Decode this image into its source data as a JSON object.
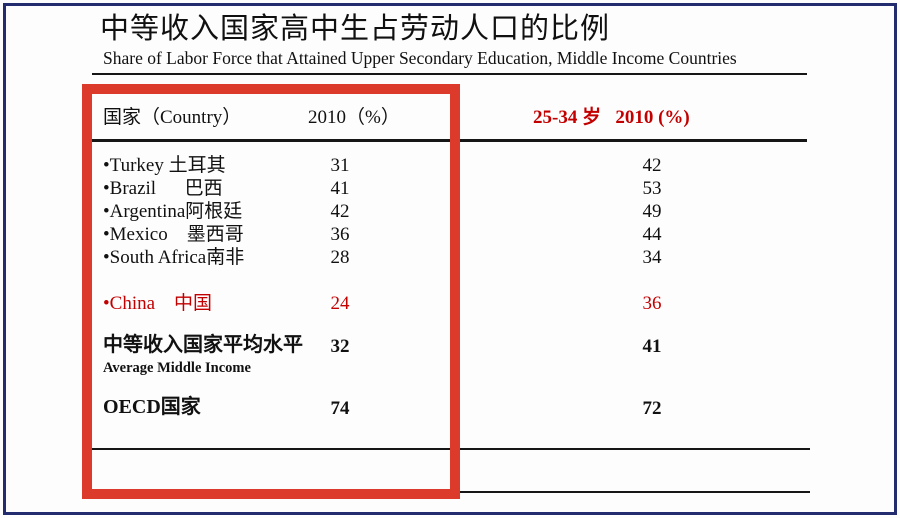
{
  "slide": {
    "title": "中等收入国家高中生占劳动人口的比例",
    "subtitle": "Share of Labor Force that Attained Upper Secondary Education, Middle Income Countries"
  },
  "table": {
    "header": {
      "country": "国家（Country）",
      "col_2010": "2010（%）",
      "col_25_34": "25-34 岁   2010 (%)"
    },
    "rows": [
      {
        "label": "•Turkey 土耳其",
        "v2010": "31",
        "v25_34": "42"
      },
      {
        "label": "•Brazil      巴西",
        "v2010": "41",
        "v25_34": "53"
      },
      {
        "label": "•Argentina阿根廷",
        "v2010": "42",
        "v25_34": "49"
      },
      {
        "label": "•Mexico    墨西哥",
        "v2010": "36",
        "v25_34": "44"
      },
      {
        "label": "•South Africa南非",
        "v2010": "28",
        "v25_34": "34"
      },
      {
        "label": "•China    中国",
        "v2010": "24",
        "v25_34": "36"
      }
    ],
    "summary_rows": [
      {
        "label": "中等收入国家平均水平",
        "sublabel": "Average Middle Income",
        "v2010": "32",
        "v25_34": "41"
      },
      {
        "label": "OECD国家",
        "v2010": "74",
        "v25_34": "72"
      }
    ]
  },
  "colors": {
    "highlight_rect_red": "#dc3b2c",
    "accent_text_red": "#c30000",
    "frame_navy": "#232c6e",
    "rule_black": "#161616"
  }
}
